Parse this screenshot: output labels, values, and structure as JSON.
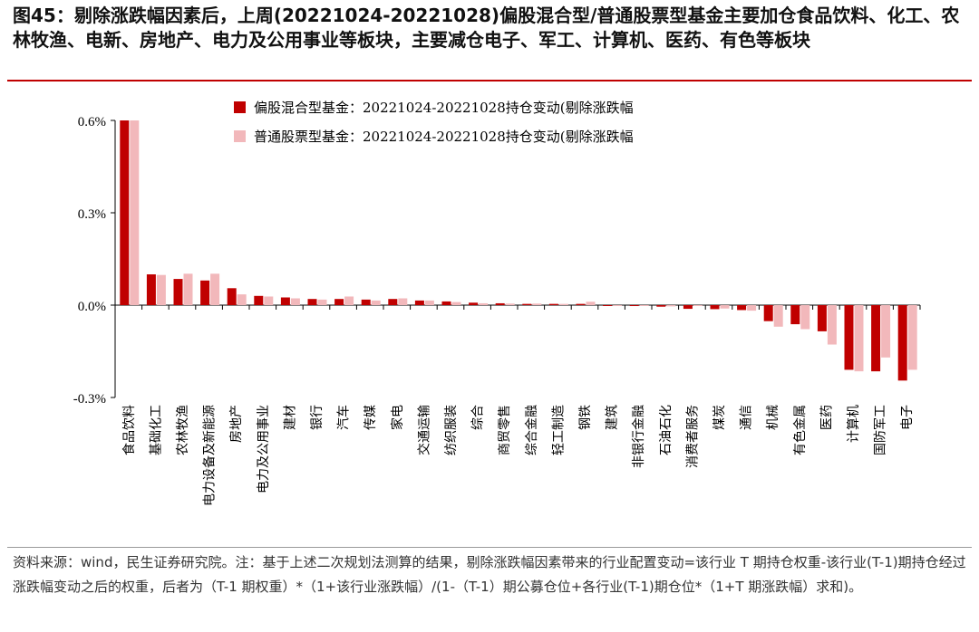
{
  "header": {
    "title": "图45：剔除涨跌幅因素后，上周(20221024-20221028)偏股混合型/普通股票型基金主要加仓食品饮料、化工、农林牧渔、电新、房地产、电力及公用事业等板块，主要减仓电子、军工、计算机、医药、有色等板块"
  },
  "colors": {
    "series1": "#c00000",
    "series2": "#f2b8bb",
    "axis": "#000000"
  },
  "chart_data": {
    "type": "bar",
    "title": "",
    "xlabel": "",
    "ylabel": "",
    "ylim": [
      -0.3,
      0.6
    ],
    "yticks": [
      "0.6%",
      "0.3%",
      "0.0%",
      "-0.3%"
    ],
    "ytick_values": [
      0.6,
      0.3,
      0.0,
      -0.3
    ],
    "legend_position": "top",
    "categories": [
      "食品饮料",
      "基础化工",
      "农林牧渔",
      "电力设备及新能源",
      "房地产",
      "电力及公用事业",
      "建材",
      "银行",
      "汽车",
      "传媒",
      "家电",
      "交通运输",
      "纺织服装",
      "综合",
      "商贸零售",
      "综合金融",
      "轻工制造",
      "钢铁",
      "建筑",
      "非银行金融",
      "石油石化",
      "消费者服务",
      "煤炭",
      "通信",
      "机械",
      "有色金属",
      "医药",
      "计算机",
      "国防军工",
      "电子"
    ],
    "series": [
      {
        "name": "偏股混合型基金：20221024-20221028持仓变动(剔除涨跌幅",
        "values": [
          0.6,
          0.1,
          0.085,
          0.08,
          0.055,
          0.03,
          0.025,
          0.02,
          0.02,
          0.018,
          0.02,
          0.015,
          0.012,
          0.008,
          0.006,
          0.004,
          0.004,
          0.004,
          -0.002,
          -0.003,
          -0.005,
          -0.012,
          -0.013,
          -0.016,
          -0.052,
          -0.062,
          -0.085,
          -0.21,
          -0.215,
          -0.245
        ]
      },
      {
        "name": "普通股票型基金：20221024-20221028持仓变动(剔除涨跌幅",
        "values": [
          0.6,
          0.098,
          0.102,
          0.102,
          0.035,
          0.028,
          0.022,
          0.018,
          0.028,
          0.015,
          0.022,
          0.015,
          0.01,
          0.006,
          0.005,
          0.005,
          0.004,
          0.011,
          -0.003,
          -0.002,
          -0.004,
          -0.003,
          -0.011,
          -0.018,
          -0.07,
          -0.078,
          -0.128,
          -0.215,
          -0.17,
          -0.21
        ]
      }
    ]
  },
  "footer": {
    "note": "资料来源：wind，民生证券研究院。注：基于上述二次规划法测算的结果，剔除涨跌幅因素带来的行业配置变动=该行业 T 期持仓权重-该行业(T-1)期持仓经过涨跌幅变动之后的权重，后者为（T-1 期权重）*（1+该行业涨跌幅）/(1-（T-1）期公募仓位+各行业(T-1)期仓位*（1+T 期涨跌幅）求和)。"
  }
}
